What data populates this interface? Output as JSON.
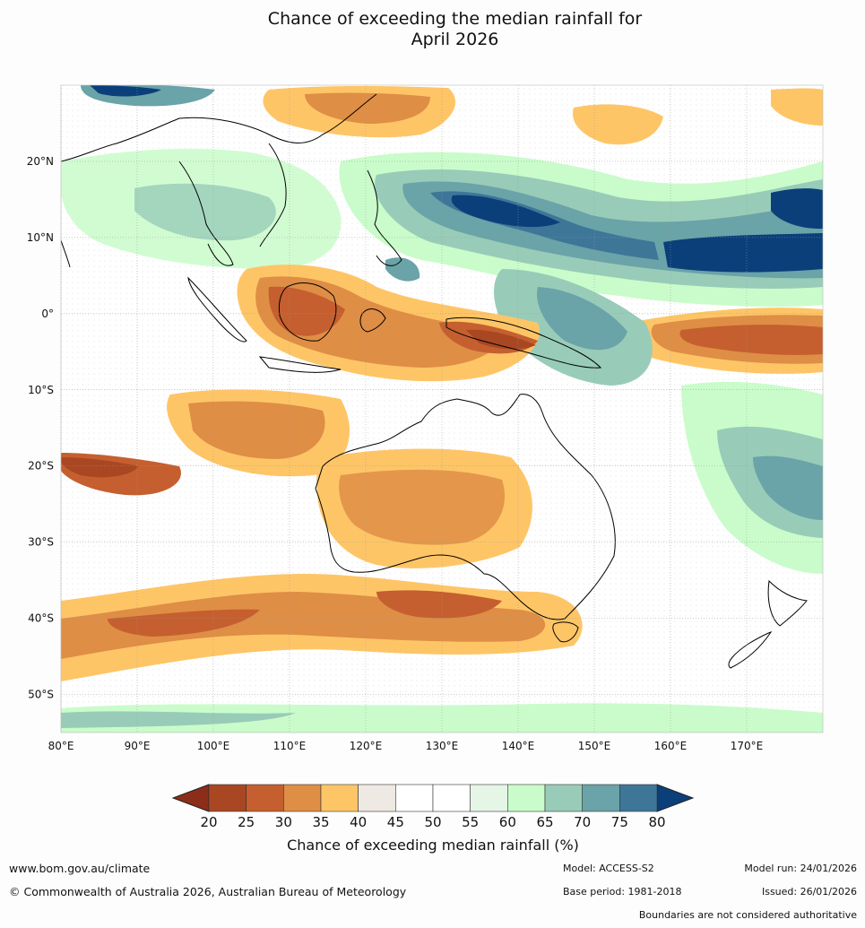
{
  "title": {
    "line1": "Chance of exceeding the median rainfall for",
    "line2": "April 2026"
  },
  "map": {
    "lat_ticks": [
      "20°N",
      "10°N",
      "0°",
      "10°S",
      "20°S",
      "30°S",
      "40°S",
      "50°S"
    ],
    "lon_ticks": [
      "80°E",
      "90°E",
      "100°E",
      "110°E",
      "120°E",
      "130°E",
      "140°E",
      "150°E",
      "160°E",
      "170°E"
    ],
    "lat_values": [
      20,
      10,
      0,
      -10,
      -20,
      -30,
      -40,
      -50
    ],
    "lon_values": [
      80,
      90,
      100,
      110,
      120,
      130,
      140,
      150,
      160,
      170
    ],
    "extent": {
      "lon": [
        80,
        180
      ],
      "lat": [
        -55,
        30
      ]
    }
  },
  "colorbar": {
    "label": "Chance of exceeding median rainfall (%)",
    "ticks": [
      "20",
      "25",
      "30",
      "35",
      "40",
      "45",
      "50",
      "55",
      "60",
      "65",
      "70",
      "75",
      "80"
    ],
    "low_extend_color": "#8c2d1a",
    "high_extend_color": "#0b3f7a",
    "bins": [
      {
        "range": "20-25",
        "color": "#a94723"
      },
      {
        "range": "25-30",
        "color": "#c55f2f"
      },
      {
        "range": "30-35",
        "color": "#df8e45"
      },
      {
        "range": "35-40",
        "color": "#fec567"
      },
      {
        "range": "40-45",
        "color": "#efe9e3"
      },
      {
        "range": "45-50",
        "color": "#ffffff"
      },
      {
        "range": "50-55",
        "color": "#ffffff"
      },
      {
        "range": "55-60",
        "color": "#e6f6e6"
      },
      {
        "range": "60-65",
        "color": "#c9fcca"
      },
      {
        "range": "65-70",
        "color": "#98ccb8"
      },
      {
        "range": "70-75",
        "color": "#6aa3a8"
      },
      {
        "range": "75-80",
        "color": "#3e7698"
      }
    ]
  },
  "footer": {
    "website": "www.bom.gov.au/climate",
    "copyright": "© Commonwealth of Australia 2026, Australian Bureau of Meteorology",
    "model": "Model: ACCESS-S2",
    "base_period": "Base period: 1981-2018",
    "model_run": "Model run: 24/01/2026",
    "issued": "Issued: 26/01/2026",
    "disclaimer": "Boundaries are not considered authoritative"
  }
}
